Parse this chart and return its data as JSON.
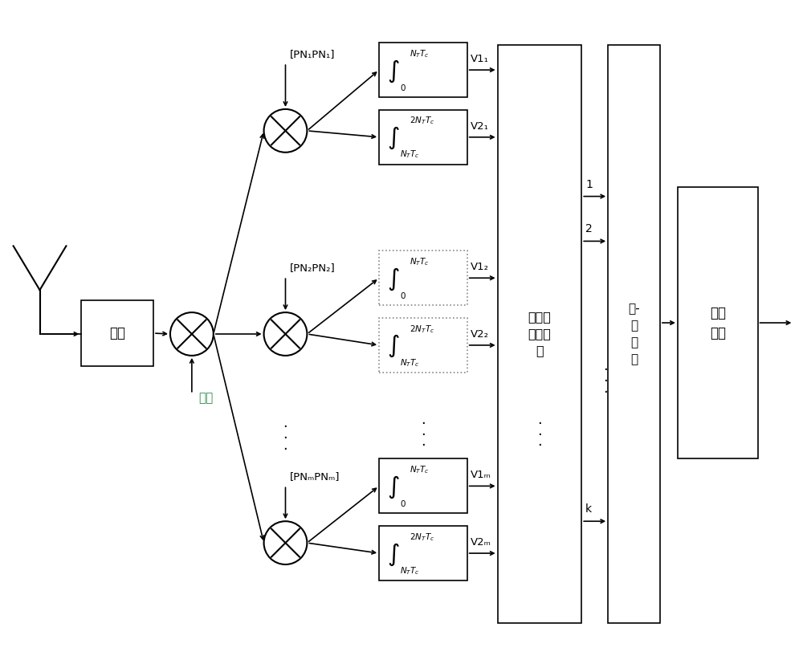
{
  "bg_color": "#ffffff",
  "line_color": "#000000",
  "carrier_color": "#2d8a4e",
  "labels": {
    "amplifier": "放大",
    "carrier": "载波",
    "pn1": "[PN₁PN₁]",
    "pn2": "[PN₂PN₂]",
    "pnM": "[PNₘPNₘ]",
    "v11": "V1₁",
    "v21": "V2₁",
    "v12": "V1₂",
    "v22": "V2₂",
    "v1M": "V1ₘ",
    "v2M": "V2ₘ",
    "int1_top1": "$N_TT_c$",
    "int1_bot1": "$0$",
    "int2_top1": "$2N_TT_c$",
    "int2_bot1": "$N_TT_c$",
    "int1_top2": "$N_TT_c$",
    "int1_bot2": "$0$",
    "int2_top2": "$2N_TT_c$",
    "int2_bot2": "$N_TT_c$",
    "int1_topM": "$N_TT_c$",
    "int1_botM": "$0$",
    "int2_topM": "$2N_TT_c$",
    "int2_botM": "$N_TT_c$",
    "data_proc": "数据算\n法逆映\n射",
    "par_ser": "并-\n串\n转\n换",
    "output": "数据\n输出",
    "label1": "1",
    "label2": "2",
    "labelk": "k"
  },
  "figsize": [
    10.0,
    8.32
  ],
  "dpi": 100
}
